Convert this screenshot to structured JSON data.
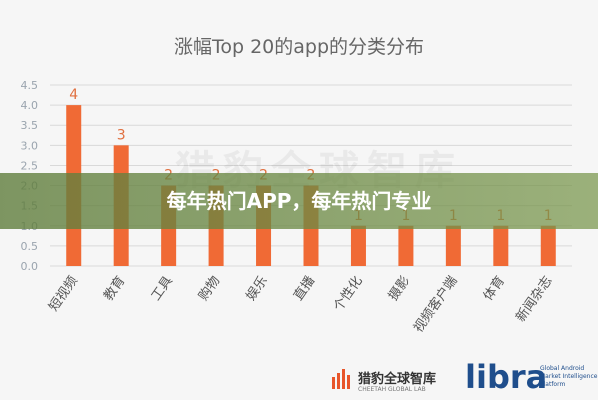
{
  "banner": {
    "text": "每年热门APP，每年热门专业"
  },
  "watermark": {
    "text": "猎豹全球智库"
  },
  "footer": {
    "brand": "猎豹全球智库",
    "brand_sub": "CHEETAH GLOBAL LAB",
    "libra": "libra",
    "libra_sub": "Global Android Market Intelligence Platform"
  },
  "colors": {
    "bar": "#f06a35",
    "label": "#e07040",
    "grid": "#d9d9d9",
    "axis_text": "#9aa4ae"
  },
  "chart_data": {
    "type": "bar",
    "title": "涨幅Top 20的app的分类分布",
    "categories": [
      "短视频",
      "教育",
      "工具",
      "购物",
      "娱乐",
      "直播",
      "个性化",
      "摄影",
      "视频客户端",
      "体育",
      "新闻杂志"
    ],
    "values": [
      4,
      3,
      2,
      2,
      2,
      2,
      1,
      1,
      1,
      1,
      1
    ],
    "data_labels": [
      "4",
      "3",
      "2",
      "2",
      "2",
      "2",
      "1",
      "1",
      "1",
      "1",
      "1"
    ],
    "yticks": [
      "0.0",
      "0.5",
      "1.0",
      "1.5",
      "2.0",
      "2.5",
      "3.0",
      "3.5",
      "4.0",
      "4.5"
    ],
    "ylim": [
      0,
      4.5
    ],
    "grid": true,
    "xlabel": "",
    "ylabel": ""
  }
}
